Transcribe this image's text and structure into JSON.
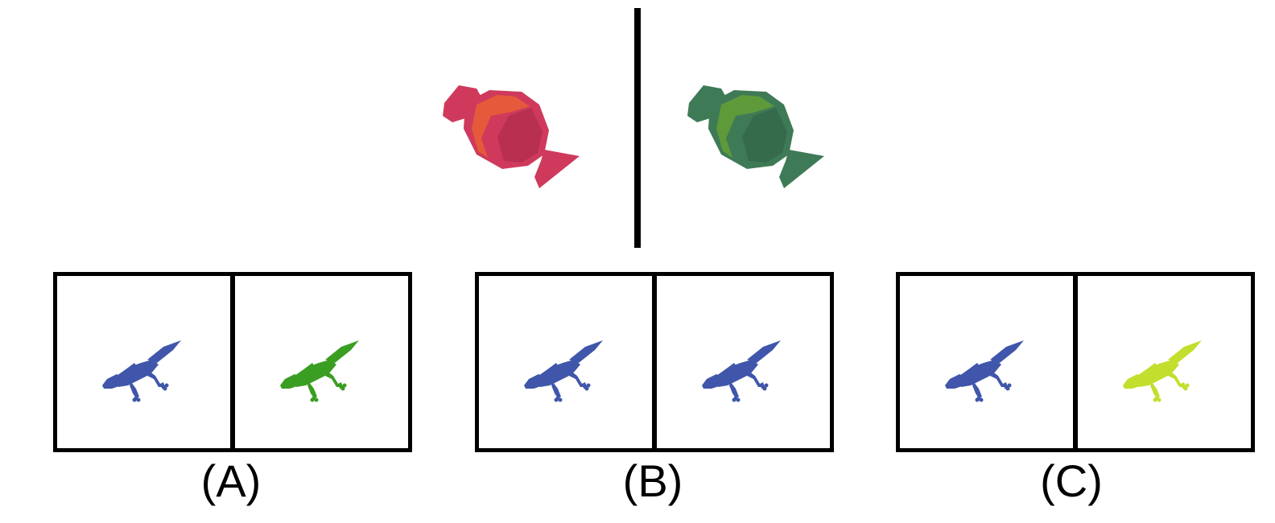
{
  "query": {
    "left_object": {
      "icon": "candy-icon",
      "colors": {
        "body": "#cf3a5c",
        "band": "#e45a3a",
        "shadow": "#b82f4f"
      }
    },
    "right_object": {
      "icon": "candy-icon",
      "colors": {
        "body": "#3f7a57",
        "band": "#5e9a3a",
        "shadow": "#356a4b"
      }
    }
  },
  "options": [
    {
      "label": "(A)",
      "left": {
        "icon": "lizard-icon",
        "color": "#3f56aa"
      },
      "right": {
        "icon": "lizard-icon",
        "color": "#3a9e22"
      }
    },
    {
      "label": "(B)",
      "left": {
        "icon": "lizard-icon",
        "color": "#3f56aa"
      },
      "right": {
        "icon": "lizard-icon",
        "color": "#3f56aa"
      }
    },
    {
      "label": "(C)",
      "left": {
        "icon": "lizard-icon",
        "color": "#3f56aa"
      },
      "right": {
        "icon": "lizard-icon",
        "color": "#c3de2c"
      }
    }
  ]
}
